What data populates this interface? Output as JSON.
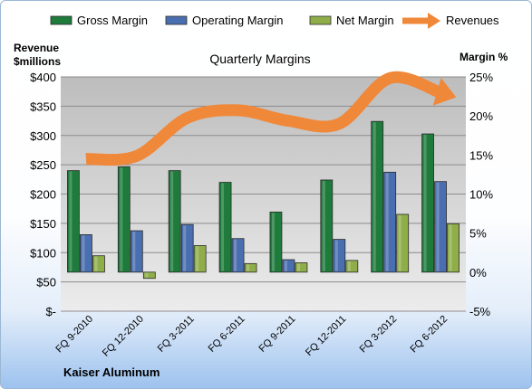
{
  "chart_data": {
    "type": "bar",
    "title": "Quarterly Margins",
    "ylabel_left": "Revenue\n$millions",
    "ylabel_right": "Margin %",
    "company": "Kaiser Aluminum",
    "categories": [
      "FQ 9-2010",
      "FQ 12-2010",
      "FQ 3-2011",
      "FQ 6-2011",
      "FQ 9-2011",
      "FQ 12-2011",
      "FQ 3-2012",
      "FQ 6-2012"
    ],
    "left_axis": {
      "min": 0,
      "max": 400,
      "step": 50,
      "ticks": [
        "$-",
        "$50",
        "$100",
        "$150",
        "$200",
        "$250",
        "$300",
        "$350",
        "$400"
      ]
    },
    "right_axis": {
      "min": -5,
      "max": 25,
      "step": 5,
      "unit": "%",
      "ticks": [
        "-5%",
        "0%",
        "5%",
        "10%",
        "15%",
        "20%",
        "25%"
      ]
    },
    "series": [
      {
        "name": "Gross Margin",
        "axis": "right",
        "kind": "bar",
        "color": "#1e7b3c",
        "values": [
          13,
          13.5,
          13,
          11.5,
          7.7,
          11.8,
          19.3,
          17.7
        ]
      },
      {
        "name": "Operating Margin",
        "axis": "right",
        "kind": "bar",
        "color": "#4a6fb0",
        "values": [
          4.8,
          5.3,
          6.1,
          4.3,
          1.6,
          4.2,
          12.8,
          11.6
        ]
      },
      {
        "name": "Net Margin",
        "axis": "right",
        "kind": "bar",
        "color": "#8fae4a",
        "values": [
          2.1,
          -0.8,
          3.4,
          1.1,
          1.2,
          1.5,
          7.4,
          6.2
        ]
      },
      {
        "name": "Revenues",
        "axis": "left",
        "kind": "line",
        "color": "#f0883a",
        "values": [
          260,
          265,
          330,
          343,
          325,
          320,
          398,
          373
        ]
      }
    ],
    "grid": true,
    "legend": "top"
  }
}
